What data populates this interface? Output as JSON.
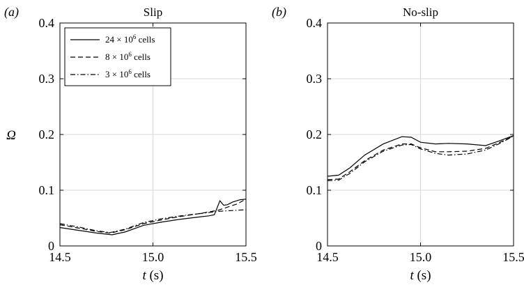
{
  "chart_data": [
    {
      "type": "line",
      "panel_label": "(a)",
      "title": "Slip",
      "ylabel": "Ω",
      "xlabel_prefix": "t",
      "xlabel_unit": " (s)",
      "xlim": [
        14.5,
        15.5
      ],
      "ylim": [
        0,
        0.4
      ],
      "xticks": [
        "14.5",
        "15.0",
        "15.5"
      ],
      "xtick_values": [
        14.5,
        15.0,
        15.5
      ],
      "yticks": [
        "0",
        "0.1",
        "0.2",
        "0.3",
        "0.4"
      ],
      "ytick_values": [
        0,
        0.1,
        0.2,
        0.3,
        0.4
      ],
      "grid": true,
      "legend_position": "top-left",
      "series": [
        {
          "name": "24 × 10",
          "name_superscript": "6",
          "name_suffix": " cells",
          "style": "solid",
          "x": [
            14.5,
            14.6,
            14.7,
            14.78,
            14.85,
            14.95,
            15.05,
            15.15,
            15.25,
            15.3,
            15.33,
            15.36,
            15.38,
            15.4,
            15.43,
            15.47,
            15.5
          ],
          "y": [
            0.033,
            0.028,
            0.023,
            0.02,
            0.025,
            0.037,
            0.043,
            0.048,
            0.052,
            0.054,
            0.056,
            0.081,
            0.073,
            0.074,
            0.079,
            0.083,
            0.084
          ]
        },
        {
          "name": "8 × 10",
          "name_superscript": "6",
          "name_suffix": " cells",
          "style": "dashed",
          "x": [
            14.5,
            14.6,
            14.7,
            14.77,
            14.85,
            14.95,
            15.05,
            15.15,
            15.25,
            15.35,
            15.45,
            15.5
          ],
          "y": [
            0.038,
            0.032,
            0.026,
            0.023,
            0.029,
            0.04,
            0.047,
            0.053,
            0.058,
            0.064,
            0.075,
            0.084
          ]
        },
        {
          "name": "3 × 10",
          "name_superscript": "6",
          "name_suffix": " cells",
          "style": "dashdot",
          "x": [
            14.5,
            14.6,
            14.7,
            14.77,
            14.85,
            14.95,
            15.05,
            15.15,
            15.25,
            15.35,
            15.45,
            15.5
          ],
          "y": [
            0.04,
            0.034,
            0.027,
            0.024,
            0.03,
            0.042,
            0.049,
            0.054,
            0.058,
            0.062,
            0.064,
            0.065
          ]
        }
      ]
    },
    {
      "type": "line",
      "panel_label": "(b)",
      "title": "No-slip",
      "ylabel": "",
      "xlabel_prefix": "t",
      "xlabel_unit": " (s)",
      "xlim": [
        14.5,
        15.5
      ],
      "ylim": [
        0,
        0.4
      ],
      "xticks": [
        "14.5",
        "15.0",
        "15.5"
      ],
      "xtick_values": [
        14.5,
        15.0,
        15.5
      ],
      "yticks": [
        "0",
        "0.1",
        "0.2",
        "0.3",
        "0.4"
      ],
      "ytick_values": [
        0,
        0.1,
        0.2,
        0.3,
        0.4
      ],
      "grid": true,
      "series": [
        {
          "style": "solid",
          "x": [
            14.5,
            14.56,
            14.62,
            14.7,
            14.8,
            14.9,
            14.95,
            15.0,
            15.08,
            15.15,
            15.25,
            15.35,
            15.42,
            15.5
          ],
          "y": [
            0.125,
            0.127,
            0.14,
            0.163,
            0.183,
            0.196,
            0.195,
            0.186,
            0.183,
            0.184,
            0.183,
            0.18,
            0.188,
            0.198
          ]
        },
        {
          "style": "dashed",
          "x": [
            14.5,
            14.56,
            14.62,
            14.7,
            14.8,
            14.9,
            14.95,
            15.0,
            15.08,
            15.15,
            15.25,
            15.35,
            15.42,
            15.5
          ],
          "y": [
            0.119,
            0.12,
            0.133,
            0.153,
            0.172,
            0.183,
            0.183,
            0.176,
            0.169,
            0.169,
            0.17,
            0.175,
            0.185,
            0.197
          ]
        },
        {
          "style": "dashdot",
          "x": [
            14.5,
            14.56,
            14.62,
            14.7,
            14.8,
            14.9,
            14.95,
            15.0,
            15.08,
            15.15,
            15.25,
            15.35,
            15.42,
            15.5
          ],
          "y": [
            0.117,
            0.118,
            0.13,
            0.151,
            0.17,
            0.181,
            0.182,
            0.174,
            0.166,
            0.163,
            0.165,
            0.172,
            0.183,
            0.197
          ]
        }
      ]
    }
  ]
}
